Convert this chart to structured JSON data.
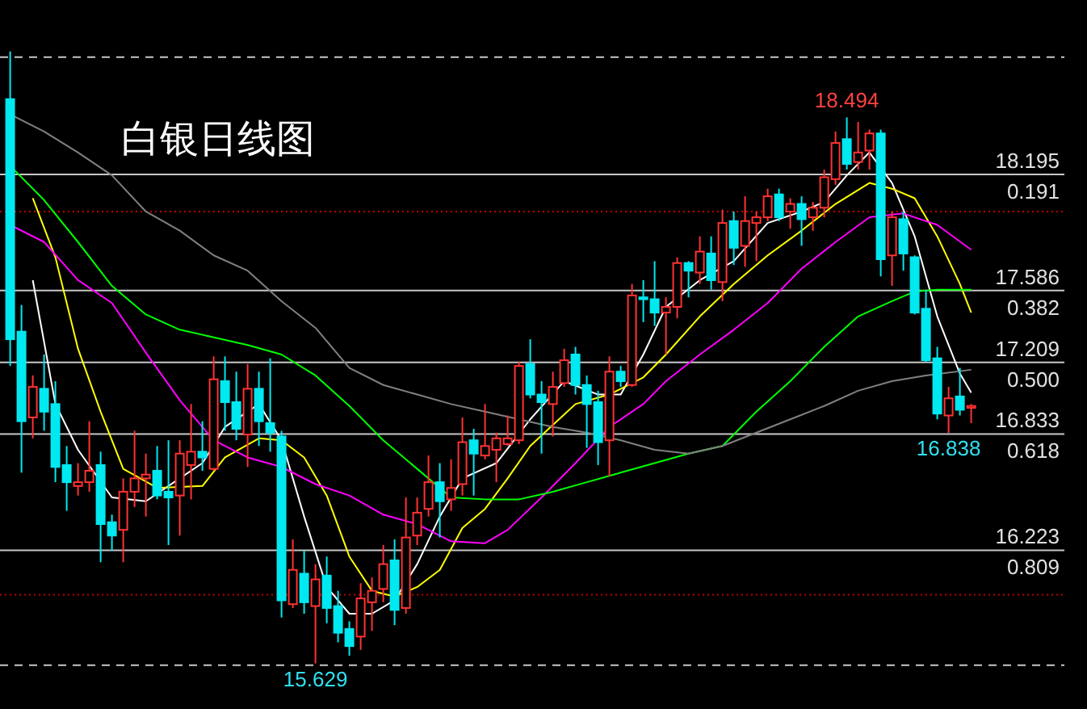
{
  "chart_data": {
    "type": "candlestick",
    "title": "白银日线图",
    "categories": [
      null,
      null,
      null,
      null,
      null,
      null,
      null,
      null,
      null,
      null,
      null,
      null,
      null,
      null,
      null,
      null,
      null,
      null,
      null,
      null,
      null,
      null,
      null,
      null,
      null,
      null,
      null,
      null,
      null,
      null,
      null,
      null,
      null,
      null,
      null,
      null,
      null,
      null,
      null,
      null,
      null,
      null,
      null,
      null,
      null,
      null,
      null,
      null,
      null,
      null,
      null,
      null,
      null,
      null,
      null,
      null,
      null,
      null,
      null,
      null,
      null,
      null,
      null,
      null,
      null,
      null,
      null,
      null,
      null,
      null,
      null,
      null,
      null,
      null,
      null,
      null,
      null,
      null,
      null,
      null,
      null,
      null,
      null,
      null,
      null,
      null
    ],
    "ohlc": [
      [
        18.59,
        18.84,
        17.19,
        17.33
      ],
      [
        17.37,
        17.51,
        16.63,
        16.9
      ],
      [
        16.92,
        17.14,
        16.81,
        17.08
      ],
      [
        17.07,
        17.25,
        16.85,
        16.95
      ],
      [
        16.99,
        17.11,
        16.58,
        16.66
      ],
      [
        16.67,
        16.77,
        16.43,
        16.58
      ],
      [
        16.56,
        16.68,
        16.51,
        16.58
      ],
      [
        16.58,
        16.9,
        16.53,
        16.64
      ],
      [
        16.67,
        16.74,
        16.16,
        16.36
      ],
      [
        16.37,
        16.41,
        16.22,
        16.3
      ],
      [
        16.33,
        16.6,
        16.16,
        16.53
      ],
      [
        16.53,
        16.85,
        16.45,
        16.6
      ],
      [
        16.6,
        16.73,
        16.4,
        16.62
      ],
      [
        16.64,
        16.77,
        16.49,
        16.51
      ],
      [
        16.53,
        16.8,
        16.25,
        16.5
      ],
      [
        16.51,
        16.8,
        16.3,
        16.73
      ],
      [
        16.67,
        16.99,
        16.49,
        16.74
      ],
      [
        16.74,
        16.9,
        16.64,
        16.71
      ],
      [
        16.65,
        17.24,
        16.64,
        17.12
      ],
      [
        17.11,
        17.24,
        16.85,
        17.0
      ],
      [
        17.0,
        17.16,
        16.8,
        16.86
      ],
      [
        16.83,
        17.2,
        16.66,
        17.07
      ],
      [
        17.07,
        17.16,
        16.77,
        16.9
      ],
      [
        16.89,
        17.23,
        16.74,
        16.84
      ],
      [
        16.82,
        16.85,
        15.87,
        15.96
      ],
      [
        15.94,
        16.28,
        15.92,
        16.12
      ],
      [
        16.1,
        16.22,
        15.89,
        15.95
      ],
      [
        15.93,
        16.15,
        15.629,
        16.07
      ],
      [
        16.09,
        16.19,
        15.84,
        15.92
      ],
      [
        15.93,
        16.01,
        15.74,
        15.79
      ],
      [
        15.81,
        15.85,
        15.67,
        15.72
      ],
      [
        15.77,
        16.05,
        15.7,
        15.97
      ],
      [
        15.95,
        16.08,
        15.8,
        16.01
      ],
      [
        16.02,
        16.25,
        15.95,
        16.15
      ],
      [
        16.17,
        16.28,
        15.83,
        15.91
      ],
      [
        15.92,
        16.5,
        15.89,
        16.29
      ],
      [
        16.3,
        16.5,
        16.25,
        16.42
      ],
      [
        16.44,
        16.72,
        16.4,
        16.58
      ],
      [
        16.58,
        16.68,
        16.29,
        16.48
      ],
      [
        16.49,
        16.7,
        16.43,
        16.55
      ],
      [
        16.57,
        16.92,
        16.51,
        16.79
      ],
      [
        16.8,
        16.86,
        16.51,
        16.73
      ],
      [
        16.72,
        16.99,
        16.7,
        16.77
      ],
      [
        16.75,
        16.84,
        16.58,
        16.81
      ],
      [
        16.78,
        16.93,
        16.77,
        16.81
      ],
      [
        16.8,
        17.21,
        16.78,
        17.19
      ],
      [
        17.2,
        17.33,
        17.02,
        17.04
      ],
      [
        17.04,
        17.11,
        16.73,
        17.0
      ],
      [
        16.99,
        17.16,
        16.82,
        17.08
      ],
      [
        17.1,
        17.28,
        17.08,
        17.22
      ],
      [
        17.25,
        17.29,
        17.04,
        17.09
      ],
      [
        17.09,
        17.14,
        16.76,
        16.99
      ],
      [
        17.0,
        17.06,
        16.67,
        16.79
      ],
      [
        16.8,
        17.24,
        16.61,
        17.16
      ],
      [
        17.16,
        17.19,
        17.08,
        17.11
      ],
      [
        17.09,
        17.62,
        17.08,
        17.56
      ],
      [
        17.55,
        17.64,
        17.42,
        17.54
      ],
      [
        17.54,
        17.74,
        17.4,
        17.47
      ],
      [
        17.47,
        17.55,
        17.25,
        17.5
      ],
      [
        17.5,
        17.76,
        17.44,
        17.73
      ],
      [
        17.73,
        17.74,
        17.55,
        17.69
      ],
      [
        17.68,
        17.87,
        17.62,
        17.79
      ],
      [
        17.78,
        17.87,
        17.59,
        17.64
      ],
      [
        17.63,
        18.01,
        17.53,
        17.94
      ],
      [
        17.95,
        18.0,
        17.72,
        17.81
      ],
      [
        17.82,
        18.08,
        17.71,
        17.95
      ],
      [
        17.94,
        18.0,
        17.74,
        17.97
      ],
      [
        17.97,
        18.12,
        17.95,
        18.08
      ],
      [
        18.09,
        18.12,
        17.95,
        17.97
      ],
      [
        18.0,
        18.07,
        17.91,
        18.04
      ],
      [
        18.04,
        18.08,
        17.82,
        17.96
      ],
      [
        17.97,
        18.05,
        17.9,
        18.02
      ],
      [
        18.02,
        18.22,
        17.97,
        18.18
      ],
      [
        18.17,
        18.42,
        18.14,
        18.36
      ],
      [
        18.38,
        18.494,
        18.22,
        18.25
      ],
      [
        18.26,
        18.47,
        18.22,
        18.31
      ],
      [
        18.32,
        18.43,
        18.22,
        18.41
      ],
      [
        18.41,
        18.43,
        17.66,
        17.75
      ],
      [
        17.77,
        18.0,
        17.61,
        17.97
      ],
      [
        17.96,
        18.0,
        17.69,
        17.78
      ],
      [
        17.76,
        17.77,
        17.46,
        17.47
      ],
      [
        17.49,
        17.59,
        17.21,
        17.22
      ],
      [
        17.23,
        17.29,
        16.91,
        16.94
      ],
      [
        16.93,
        17.08,
        16.838,
        17.02
      ],
      [
        17.03,
        17.18,
        16.93,
        16.96
      ],
      [
        16.97,
        16.99,
        16.89,
        16.98
      ]
    ],
    "series": [
      {
        "type": "line",
        "color": "#ffffff",
        "values": [
          null,
          null,
          17.64,
          null,
          16.99,
          null,
          16.75,
          null,
          null,
          16.5,
          null,
          null,
          16.48,
          null,
          null,
          16.6,
          null,
          16.68,
          null,
          16.87,
          null,
          null,
          16.99,
          null,
          16.8,
          null,
          16.4,
          null,
          16.03,
          null,
          15.89,
          null,
          15.89,
          null,
          15.96,
          null,
          16.15,
          null,
          16.4,
          null,
          16.6,
          null,
          null,
          16.68,
          null,
          null,
          16.91,
          null,
          null,
          17.11,
          null,
          null,
          17.04,
          null,
          17.04,
          null,
          17.25,
          null,
          17.5,
          null,
          null,
          17.64,
          null,
          null,
          17.74,
          null,
          null,
          17.94,
          null,
          null,
          18.0,
          null,
          18.05,
          null,
          18.19,
          null,
          18.31,
          null,
          18.15,
          null,
          17.87,
          null,
          17.45,
          null,
          17.15,
          17.05
        ]
      },
      {
        "type": "line",
        "color": "#ffff00",
        "values": [
          null,
          null,
          18.07,
          null,
          17.76,
          null,
          17.28,
          null,
          16.95,
          null,
          16.65,
          null,
          null,
          16.55,
          null,
          null,
          null,
          16.56,
          null,
          16.71,
          null,
          null,
          16.81,
          null,
          16.8,
          null,
          16.71,
          null,
          16.51,
          null,
          16.19,
          null,
          16.01,
          null,
          15.98,
          null,
          16.03,
          null,
          16.12,
          null,
          16.34,
          null,
          16.44,
          null,
          16.6,
          null,
          16.77,
          null,
          16.88,
          null,
          16.99,
          null,
          null,
          17.04,
          null,
          null,
          17.13,
          null,
          17.25,
          null,
          null,
          17.45,
          null,
          null,
          17.62,
          null,
          null,
          17.77,
          null,
          null,
          17.9,
          null,
          null,
          18.04,
          null,
          null,
          18.15,
          null,
          18.12,
          null,
          18.07,
          null,
          17.87,
          null,
          17.62,
          17.47
        ]
      },
      {
        "type": "line",
        "color": "#ff00ff",
        "values": [
          17.93,
          null,
          null,
          17.84,
          null,
          null,
          17.64,
          null,
          null,
          17.52,
          null,
          null,
          17.26,
          null,
          null,
          17.01,
          null,
          null,
          16.8,
          null,
          null,
          16.71,
          null,
          null,
          16.66,
          null,
          null,
          16.57,
          null,
          null,
          16.51,
          null,
          null,
          16.41,
          null,
          null,
          16.36,
          null,
          null,
          16.27,
          null,
          null,
          16.26,
          null,
          16.33,
          null,
          null,
          16.5,
          null,
          null,
          16.68,
          null,
          null,
          16.87,
          null,
          null,
          16.99,
          null,
          17.11,
          null,
          null,
          17.25,
          null,
          null,
          17.38,
          null,
          null,
          17.52,
          null,
          null,
          17.7,
          null,
          null,
          17.84,
          null,
          null,
          17.97,
          null,
          null,
          17.99,
          null,
          null,
          17.93,
          null,
          null,
          17.8
        ]
      },
      {
        "type": "line",
        "color": "#00ff00",
        "values": [
          18.24,
          null,
          null,
          18.06,
          null,
          null,
          17.84,
          null,
          null,
          17.61,
          null,
          null,
          17.46,
          null,
          null,
          17.38,
          null,
          null,
          17.34,
          null,
          null,
          17.3,
          null,
          null,
          17.25,
          null,
          null,
          17.14,
          null,
          null,
          16.98,
          null,
          null,
          16.8,
          null,
          null,
          16.65,
          null,
          null,
          16.5,
          null,
          null,
          16.49,
          null,
          null,
          16.49,
          null,
          null,
          16.53,
          null,
          null,
          16.58,
          null,
          null,
          16.63,
          null,
          null,
          16.68,
          null,
          null,
          16.73,
          null,
          null,
          16.77,
          null,
          null,
          16.95,
          null,
          null,
          17.11,
          null,
          null,
          17.29,
          null,
          null,
          17.45,
          null,
          null,
          17.53,
          null,
          17.58,
          null,
          17.59,
          null,
          null,
          17.59
        ]
      },
      {
        "type": "line",
        "color": "#808080",
        "values": [
          18.51,
          null,
          null,
          18.42,
          null,
          null,
          18.31,
          null,
          null,
          18.19,
          null,
          null,
          18.0,
          null,
          null,
          17.9,
          null,
          null,
          17.77,
          null,
          null,
          17.69,
          null,
          null,
          17.53,
          null,
          null,
          17.39,
          null,
          null,
          17.18,
          null,
          null,
          17.09,
          null,
          null,
          17.04,
          null,
          null,
          16.99,
          null,
          null,
          16.95,
          null,
          null,
          16.91,
          null,
          null,
          16.87,
          null,
          null,
          16.84,
          null,
          null,
          16.8,
          null,
          null,
          16.75,
          null,
          null,
          16.73,
          null,
          null,
          16.77,
          null,
          null,
          16.84,
          null,
          null,
          16.91,
          null,
          null,
          16.98,
          null,
          null,
          17.06,
          null,
          null,
          17.11,
          null,
          null,
          17.14,
          null,
          null,
          null,
          17.17
        ]
      }
    ],
    "ylim": [
      15.39,
      19.11
    ],
    "ref_lines": [
      {
        "axis": "y",
        "value": 18.81,
        "color": "#c8c8c8",
        "line_style": "dashed"
      },
      {
        "axis": "y",
        "value": 18.195,
        "label": "18.195",
        "color": "#c8c8c8",
        "line_style": "solid"
      },
      {
        "axis": "y",
        "value": 18.0,
        "color": "#c00000",
        "line_style": "dotted"
      },
      {
        "axis": "y",
        "value": 17.586,
        "label": "17.586",
        "color": "#c8c8c8",
        "line_style": "solid"
      },
      {
        "axis": "y",
        "value": 17.209,
        "label": "17.209",
        "color": "#c8c8c8",
        "line_style": "solid"
      },
      {
        "axis": "y",
        "value": 16.833,
        "label": "16.833",
        "color": "#c8c8c8",
        "line_style": "solid"
      },
      {
        "axis": "y",
        "value": 16.223,
        "label": "16.223",
        "color": "#c8c8c8",
        "line_style": "solid"
      },
      {
        "axis": "y",
        "value": 15.99,
        "color": "#c00000",
        "line_style": "dotted"
      },
      {
        "axis": "y",
        "value": 15.62,
        "color": "#c8c8c8",
        "line_style": "dashed"
      }
    ],
    "annotations": [
      {
        "text": "0.191",
        "y": 18.195
      },
      {
        "text": "0.382",
        "y": 17.586
      },
      {
        "text": "0.500",
        "y": 17.209
      },
      {
        "text": "0.618",
        "y": 16.833
      },
      {
        "text": "0.809",
        "y": 16.223
      },
      {
        "text": "18.494",
        "y": 18.494
      },
      {
        "text": "16.838",
        "y": 16.838
      },
      {
        "text": "15.629",
        "y": 15.629
      }
    ]
  }
}
